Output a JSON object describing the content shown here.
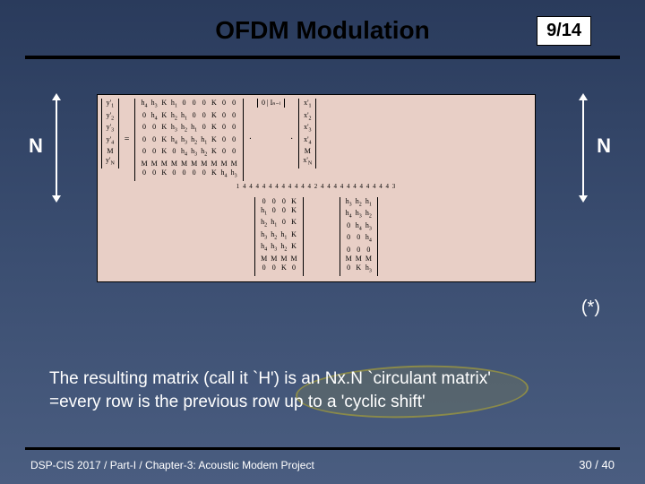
{
  "slide": {
    "title": "OFDM Modulation",
    "page_badge": "9/14",
    "background_gradient": [
      "#2a3b5c",
      "#3a4d70",
      "#4a5d80"
    ],
    "divider_color": "#000000"
  },
  "labels": {
    "N_left": "N",
    "N_right": "N",
    "star": "(*)"
  },
  "matrix": {
    "panel_bg": "#e8cfc6",
    "panel_border": "#000000",
    "y_vector": [
      "y'₁",
      "y'₂",
      "y'₃",
      "y'₄",
      "M",
      "y'ₙ"
    ],
    "H_upper_rows": [
      [
        "h₄",
        "h₃",
        "K",
        "h₁",
        "0",
        "0",
        "0",
        "K",
        "0",
        "0"
      ],
      [
        "0",
        "h₄",
        "K",
        "h₂",
        "h₁",
        "0",
        "0",
        "K",
        "0",
        "0"
      ],
      [
        "0",
        "0",
        "K",
        "h₃",
        "h₂",
        "h₁",
        "0",
        "K",
        "0",
        "0"
      ],
      [
        "0",
        "0",
        "K",
        "h₄",
        "h₃",
        "h₂",
        "h₁",
        "K",
        "0",
        "0"
      ],
      [
        "0",
        "0",
        "K",
        "0",
        "h₄",
        "h₃",
        "h₂",
        "K",
        "0",
        "0"
      ],
      [
        "M",
        "M",
        "M",
        "M",
        "M",
        "M",
        "M",
        "M",
        "M",
        "M"
      ],
      [
        "0",
        "0",
        "K",
        "0",
        "0",
        "0",
        "0",
        "K",
        "h₄",
        "h₃"
      ]
    ],
    "middle_label": "1 4 4 4 4 4 4 4 4 4 4 4 2 4 4 4 4 4 4 4 4 4 4 4 3",
    "H_lower_rows": [
      [
        "0",
        "0",
        "0",
        "K",
        "h₃",
        "h₂",
        "h₁"
      ],
      [
        "h₁",
        "0",
        "0",
        "K",
        "h₄",
        "h₃",
        "h₂"
      ],
      [
        "h₂",
        "h₁",
        "0",
        "K",
        "0",
        "h₄",
        "h₃"
      ],
      [
        "h₃",
        "h₂",
        "h₁",
        "K",
        "0",
        "0",
        "h₄"
      ],
      [
        "h₄",
        "h₃",
        "h₂",
        "K",
        "0",
        "0",
        "0"
      ],
      [
        "M",
        "M",
        "M",
        "M",
        "M",
        "M",
        "M"
      ],
      [
        "0",
        "0",
        "K",
        "0",
        "0",
        "0",
        "K"
      ]
    ],
    "zero_identity": "0 | Iₙ₋ₗ",
    "x_vector": [
      "x'₁",
      "x'₂",
      "x'₃",
      "x'₄",
      "M",
      "x'ₙ"
    ],
    "equals": "="
  },
  "body": {
    "line1": "The resulting matrix (call it `H') is an Nx.N `circulant matrix'",
    "line2": "=every row is the previous row up to a 'cyclic shift'",
    "highlight_color": "#8a8a4a"
  },
  "footer": {
    "left": "DSP-CIS  2017  /  Part-I  /  Chapter-3: Acoustic Modem Project",
    "right": "30 / 40"
  }
}
